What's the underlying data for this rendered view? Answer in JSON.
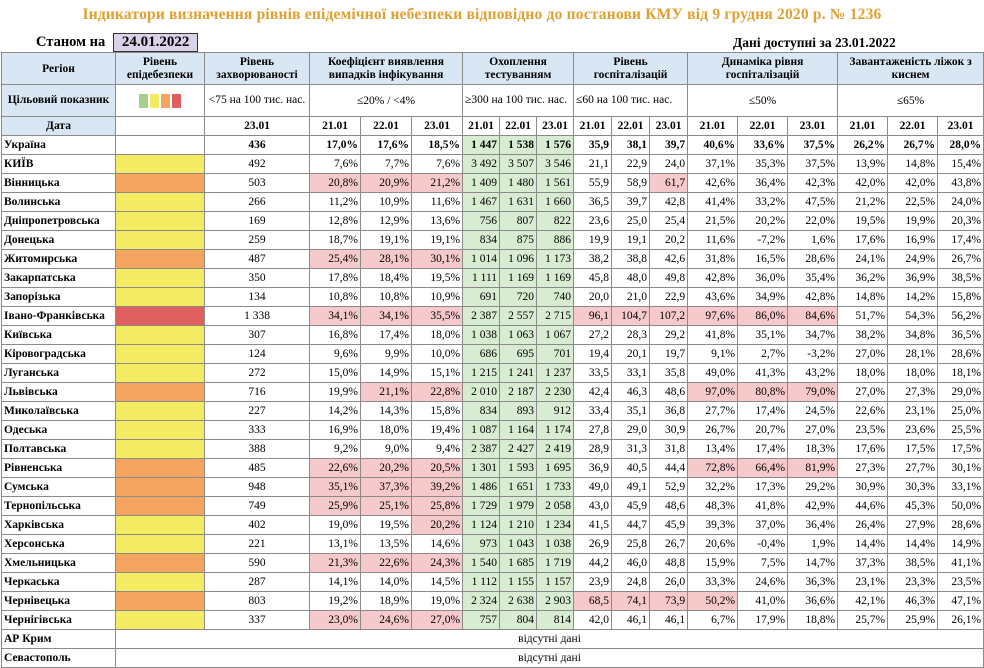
{
  "title": "Індикатори визначення рівнів епідемічної небезпеки відповідно до постанови КМУ від 9 грудня 2020 р. № 1236",
  "as_of_label": "Станом на",
  "as_of_date": "24.01.2022",
  "available_label": "Дані доступні за",
  "available_date": "23.01.2022",
  "headers": {
    "region": "Регіон",
    "target": "Цільовий показник",
    "date": "Дата",
    "level": "Рівень епідебезпеки",
    "incidence": "Рівень захворюваності",
    "incidence_target": "<75 на 100 тис. нас.",
    "detection": "Коефіцієнт виявлення випадків інфікування",
    "detection_target": "≤20% / <4%",
    "testing": "Охоплення тестуванням",
    "testing_target": "≥300 на 100 тис. нас.",
    "hosp": "Рівень госпіталізацій",
    "hosp_target": "≤60 на 100 тис. нас.",
    "dyn": "Динаміка рівня госпіталізацій",
    "dyn_target": "≤50%",
    "beds": "Завантаженість ліжок з киснем",
    "beds_target": "≤65%",
    "dates": [
      "23.01",
      "21.01",
      "22.01",
      "23.01",
      "21.01",
      "22.01",
      "23.01",
      "21.01",
      "22.01",
      "23.01",
      "21.01",
      "22.01",
      "23.01",
      "21.01",
      "22.01",
      "23.01"
    ]
  },
  "level_colors": {
    "yellow": "#f3ec63",
    "orange": "#f3a560",
    "red": "#e06060",
    "green": "#a8d08d"
  },
  "ukraine": {
    "name": "Україна",
    "inc": "436",
    "det": [
      "17,0%",
      "17,6%",
      "18,5%"
    ],
    "test": [
      "1 447",
      "1 538",
      "1 576"
    ],
    "hosp": [
      "35,9",
      "38,1",
      "39,7"
    ],
    "dyn": [
      "40,6%",
      "33,6%",
      "37,5%"
    ],
    "beds": [
      "26,2%",
      "26,7%",
      "28,0%"
    ]
  },
  "rows": [
    {
      "name": "КИЇВ",
      "level": "yellow",
      "inc": "492",
      "det": [
        "7,6%",
        "7,7%",
        "7,6%"
      ],
      "test": [
        "3 492",
        "3 507",
        "3 546"
      ],
      "hosp": [
        "21,1",
        "22,9",
        "24,0"
      ],
      "dyn": [
        "37,1%",
        "35,3%",
        "37,5%"
      ],
      "beds": [
        "13,9%",
        "14,8%",
        "15,4%"
      ]
    },
    {
      "name": "Вінницька",
      "level": "orange",
      "inc": "503",
      "det": [
        "20,8%",
        "20,9%",
        "21,2%"
      ],
      "test": [
        "1 409",
        "1 480",
        "1 561"
      ],
      "hosp": [
        "55,9",
        "58,9",
        "61,7"
      ],
      "dyn": [
        "42,6%",
        "36,4%",
        "42,3%"
      ],
      "beds": [
        "42,0%",
        "42,0%",
        "43,8%"
      ]
    },
    {
      "name": "Волинська",
      "level": "yellow",
      "inc": "266",
      "det": [
        "11,2%",
        "10,9%",
        "11,6%"
      ],
      "test": [
        "1 467",
        "1 631",
        "1 660"
      ],
      "hosp": [
        "36,5",
        "39,7",
        "42,8"
      ],
      "dyn": [
        "41,4%",
        "33,2%",
        "47,5%"
      ],
      "beds": [
        "21,2%",
        "22,5%",
        "24,0%"
      ]
    },
    {
      "name": "Дніпропетровська",
      "level": "yellow",
      "inc": "169",
      "det": [
        "12,8%",
        "12,9%",
        "13,6%"
      ],
      "test": [
        "756",
        "807",
        "822"
      ],
      "hosp": [
        "23,6",
        "25,0",
        "25,4"
      ],
      "dyn": [
        "21,5%",
        "20,2%",
        "22,0%"
      ],
      "beds": [
        "19,5%",
        "19,9%",
        "20,3%"
      ]
    },
    {
      "name": "Донецька",
      "level": "yellow",
      "inc": "259",
      "det": [
        "18,7%",
        "19,1%",
        "19,1%"
      ],
      "test": [
        "834",
        "875",
        "886"
      ],
      "hosp": [
        "19,9",
        "19,1",
        "20,2"
      ],
      "dyn": [
        "11,6%",
        "-7,2%",
        "1,6%"
      ],
      "beds": [
        "17,6%",
        "16,9%",
        "17,4%"
      ]
    },
    {
      "name": "Житомирська",
      "level": "orange",
      "inc": "487",
      "det": [
        "25,4%",
        "28,1%",
        "30,1%"
      ],
      "test": [
        "1 014",
        "1 096",
        "1 173"
      ],
      "hosp": [
        "38,2",
        "38,8",
        "42,6"
      ],
      "dyn": [
        "31,8%",
        "16,5%",
        "28,6%"
      ],
      "beds": [
        "24,1%",
        "24,9%",
        "26,7%"
      ]
    },
    {
      "name": "Закарпатська",
      "level": "yellow",
      "inc": "350",
      "det": [
        "17,8%",
        "18,4%",
        "19,5%"
      ],
      "test": [
        "1 111",
        "1 169",
        "1 169"
      ],
      "hosp": [
        "45,8",
        "48,0",
        "49,8"
      ],
      "dyn": [
        "42,8%",
        "36,0%",
        "35,4%"
      ],
      "beds": [
        "36,2%",
        "36,9%",
        "38,5%"
      ]
    },
    {
      "name": "Запорізька",
      "level": "yellow",
      "inc": "134",
      "det": [
        "10,8%",
        "10,8%",
        "10,9%"
      ],
      "test": [
        "691",
        "720",
        "740"
      ],
      "hosp": [
        "20,0",
        "21,0",
        "22,9"
      ],
      "dyn": [
        "43,6%",
        "34,9%",
        "42,8%"
      ],
      "beds": [
        "14,8%",
        "14,2%",
        "15,8%"
      ]
    },
    {
      "name": "Івано-Франківська",
      "level": "red",
      "inc": "1 338",
      "det": [
        "34,1%",
        "34,1%",
        "35,5%"
      ],
      "test": [
        "2 387",
        "2 557",
        "2 715"
      ],
      "hosp": [
        "96,1",
        "104,7",
        "107,2"
      ],
      "dyn": [
        "97,6%",
        "86,0%",
        "84,6%"
      ],
      "beds": [
        "51,7%",
        "54,3%",
        "56,2%"
      ]
    },
    {
      "name": "Київська",
      "level": "yellow",
      "inc": "307",
      "det": [
        "16,8%",
        "17,4%",
        "18,0%"
      ],
      "test": [
        "1 038",
        "1 063",
        "1 067"
      ],
      "hosp": [
        "27,2",
        "28,3",
        "29,2"
      ],
      "dyn": [
        "41,8%",
        "35,1%",
        "34,7%"
      ],
      "beds": [
        "38,2%",
        "34,8%",
        "36,5%"
      ]
    },
    {
      "name": "Кіровоградська",
      "level": "yellow",
      "inc": "124",
      "det": [
        "9,6%",
        "9,9%",
        "10,0%"
      ],
      "test": [
        "686",
        "695",
        "701"
      ],
      "hosp": [
        "19,4",
        "20,1",
        "19,7"
      ],
      "dyn": [
        "9,1%",
        "2,7%",
        "-3,2%"
      ],
      "beds": [
        "27,0%",
        "28,1%",
        "28,6%"
      ]
    },
    {
      "name": "Луганська",
      "level": "yellow",
      "inc": "272",
      "det": [
        "15,0%",
        "14,9%",
        "15,1%"
      ],
      "test": [
        "1 215",
        "1 241",
        "1 237"
      ],
      "hosp": [
        "33,5",
        "33,1",
        "35,8"
      ],
      "dyn": [
        "49,0%",
        "41,3%",
        "43,2%"
      ],
      "beds": [
        "18,0%",
        "18,0%",
        "18,1%"
      ]
    },
    {
      "name": "Львівська",
      "level": "orange",
      "inc": "716",
      "det": [
        "19,9%",
        "21,1%",
        "22,8%"
      ],
      "test": [
        "2 010",
        "2 187",
        "2 230"
      ],
      "hosp": [
        "42,4",
        "46,3",
        "48,6"
      ],
      "dyn": [
        "97,0%",
        "80,8%",
        "79,0%"
      ],
      "beds": [
        "27,0%",
        "27,3%",
        "29,0%"
      ]
    },
    {
      "name": "Миколаївська",
      "level": "yellow",
      "inc": "227",
      "det": [
        "14,2%",
        "14,3%",
        "15,8%"
      ],
      "test": [
        "834",
        "893",
        "912"
      ],
      "hosp": [
        "33,4",
        "35,1",
        "36,8"
      ],
      "dyn": [
        "27,7%",
        "17,4%",
        "24,5%"
      ],
      "beds": [
        "22,6%",
        "23,1%",
        "25,0%"
      ]
    },
    {
      "name": "Одеська",
      "level": "yellow",
      "inc": "333",
      "det": [
        "16,9%",
        "18,0%",
        "19,4%"
      ],
      "test": [
        "1 087",
        "1 164",
        "1 174"
      ],
      "hosp": [
        "27,8",
        "29,0",
        "30,9"
      ],
      "dyn": [
        "26,7%",
        "20,7%",
        "27,0%"
      ],
      "beds": [
        "23,5%",
        "23,6%",
        "25,5%"
      ]
    },
    {
      "name": "Полтавська",
      "level": "yellow",
      "inc": "388",
      "det": [
        "9,2%",
        "9,0%",
        "9,4%"
      ],
      "test": [
        "2 387",
        "2 427",
        "2 419"
      ],
      "hosp": [
        "28,9",
        "31,3",
        "31,8"
      ],
      "dyn": [
        "13,4%",
        "17,4%",
        "18,3%"
      ],
      "beds": [
        "17,6%",
        "17,5%",
        "17,5%"
      ]
    },
    {
      "name": "Рівненська",
      "level": "orange",
      "inc": "485",
      "det": [
        "22,6%",
        "20,2%",
        "20,5%"
      ],
      "test": [
        "1 301",
        "1 593",
        "1 695"
      ],
      "hosp": [
        "36,9",
        "40,5",
        "44,4"
      ],
      "dyn": [
        "72,8%",
        "66,4%",
        "81,9%"
      ],
      "beds": [
        "27,3%",
        "27,7%",
        "30,1%"
      ]
    },
    {
      "name": "Сумська",
      "level": "orange",
      "inc": "948",
      "det": [
        "35,1%",
        "37,3%",
        "39,2%"
      ],
      "test": [
        "1 486",
        "1 651",
        "1 733"
      ],
      "hosp": [
        "49,0",
        "49,1",
        "52,9"
      ],
      "dyn": [
        "32,2%",
        "17,3%",
        "29,2%"
      ],
      "beds": [
        "30,9%",
        "30,3%",
        "33,1%"
      ]
    },
    {
      "name": "Тернопільська",
      "level": "orange",
      "inc": "749",
      "det": [
        "25,9%",
        "25,1%",
        "25,8%"
      ],
      "test": [
        "1 729",
        "1 979",
        "2 058"
      ],
      "hosp": [
        "43,0",
        "45,9",
        "48,6"
      ],
      "dyn": [
        "48,3%",
        "41,8%",
        "42,9%"
      ],
      "beds": [
        "44,6%",
        "45,3%",
        "50,0%"
      ]
    },
    {
      "name": "Харківська",
      "level": "yellow",
      "inc": "402",
      "det": [
        "19,0%",
        "19,5%",
        "20,2%"
      ],
      "test": [
        "1 124",
        "1 210",
        "1 234"
      ],
      "hosp": [
        "41,5",
        "44,7",
        "45,9"
      ],
      "dyn": [
        "39,3%",
        "37,0%",
        "36,4%"
      ],
      "beds": [
        "26,4%",
        "27,9%",
        "28,6%"
      ]
    },
    {
      "name": "Херсонська",
      "level": "yellow",
      "inc": "221",
      "det": [
        "13,1%",
        "13,5%",
        "14,6%"
      ],
      "test": [
        "973",
        "1 043",
        "1 038"
      ],
      "hosp": [
        "26,9",
        "25,8",
        "26,7"
      ],
      "dyn": [
        "20,6%",
        "-0,4%",
        "1,9%"
      ],
      "beds": [
        "14,4%",
        "14,4%",
        "14,9%"
      ]
    },
    {
      "name": "Хмельницька",
      "level": "orange",
      "inc": "590",
      "det": [
        "21,3%",
        "22,6%",
        "24,3%"
      ],
      "test": [
        "1 540",
        "1 685",
        "1 719"
      ],
      "hosp": [
        "44,2",
        "46,0",
        "48,8"
      ],
      "dyn": [
        "15,9%",
        "7,5%",
        "14,7%"
      ],
      "beds": [
        "37,3%",
        "38,5%",
        "41,1%"
      ]
    },
    {
      "name": "Черкаська",
      "level": "yellow",
      "inc": "287",
      "det": [
        "14,1%",
        "14,0%",
        "14,5%"
      ],
      "test": [
        "1 112",
        "1 155",
        "1 157"
      ],
      "hosp": [
        "23,9",
        "24,8",
        "26,0"
      ],
      "dyn": [
        "33,3%",
        "24,6%",
        "36,3%"
      ],
      "beds": [
        "23,1%",
        "23,3%",
        "23,5%"
      ]
    },
    {
      "name": "Чернівецька",
      "level": "orange",
      "inc": "803",
      "det": [
        "19,2%",
        "18,9%",
        "19,0%"
      ],
      "test": [
        "2 324",
        "2 638",
        "2 903"
      ],
      "hosp": [
        "68,5",
        "74,1",
        "73,9"
      ],
      "dyn": [
        "50,2%",
        "41,0%",
        "36,6%"
      ],
      "beds": [
        "42,1%",
        "46,3%",
        "47,1%"
      ]
    },
    {
      "name": "Чернігівська",
      "level": "yellow",
      "inc": "337",
      "det": [
        "23,0%",
        "24,6%",
        "27,0%"
      ],
      "test": [
        "757",
        "804",
        "814"
      ],
      "hosp": [
        "42,0",
        "46,1",
        "46,1"
      ],
      "dyn": [
        "6,7%",
        "17,9%",
        "18,8%"
      ],
      "beds": [
        "25,7%",
        "25,9%",
        "26,1%"
      ]
    }
  ],
  "missing_rows": [
    {
      "name": "АР Крим",
      "note": "відсутні дані"
    },
    {
      "name": "Севастополь",
      "note": "відсутні дані"
    }
  ]
}
